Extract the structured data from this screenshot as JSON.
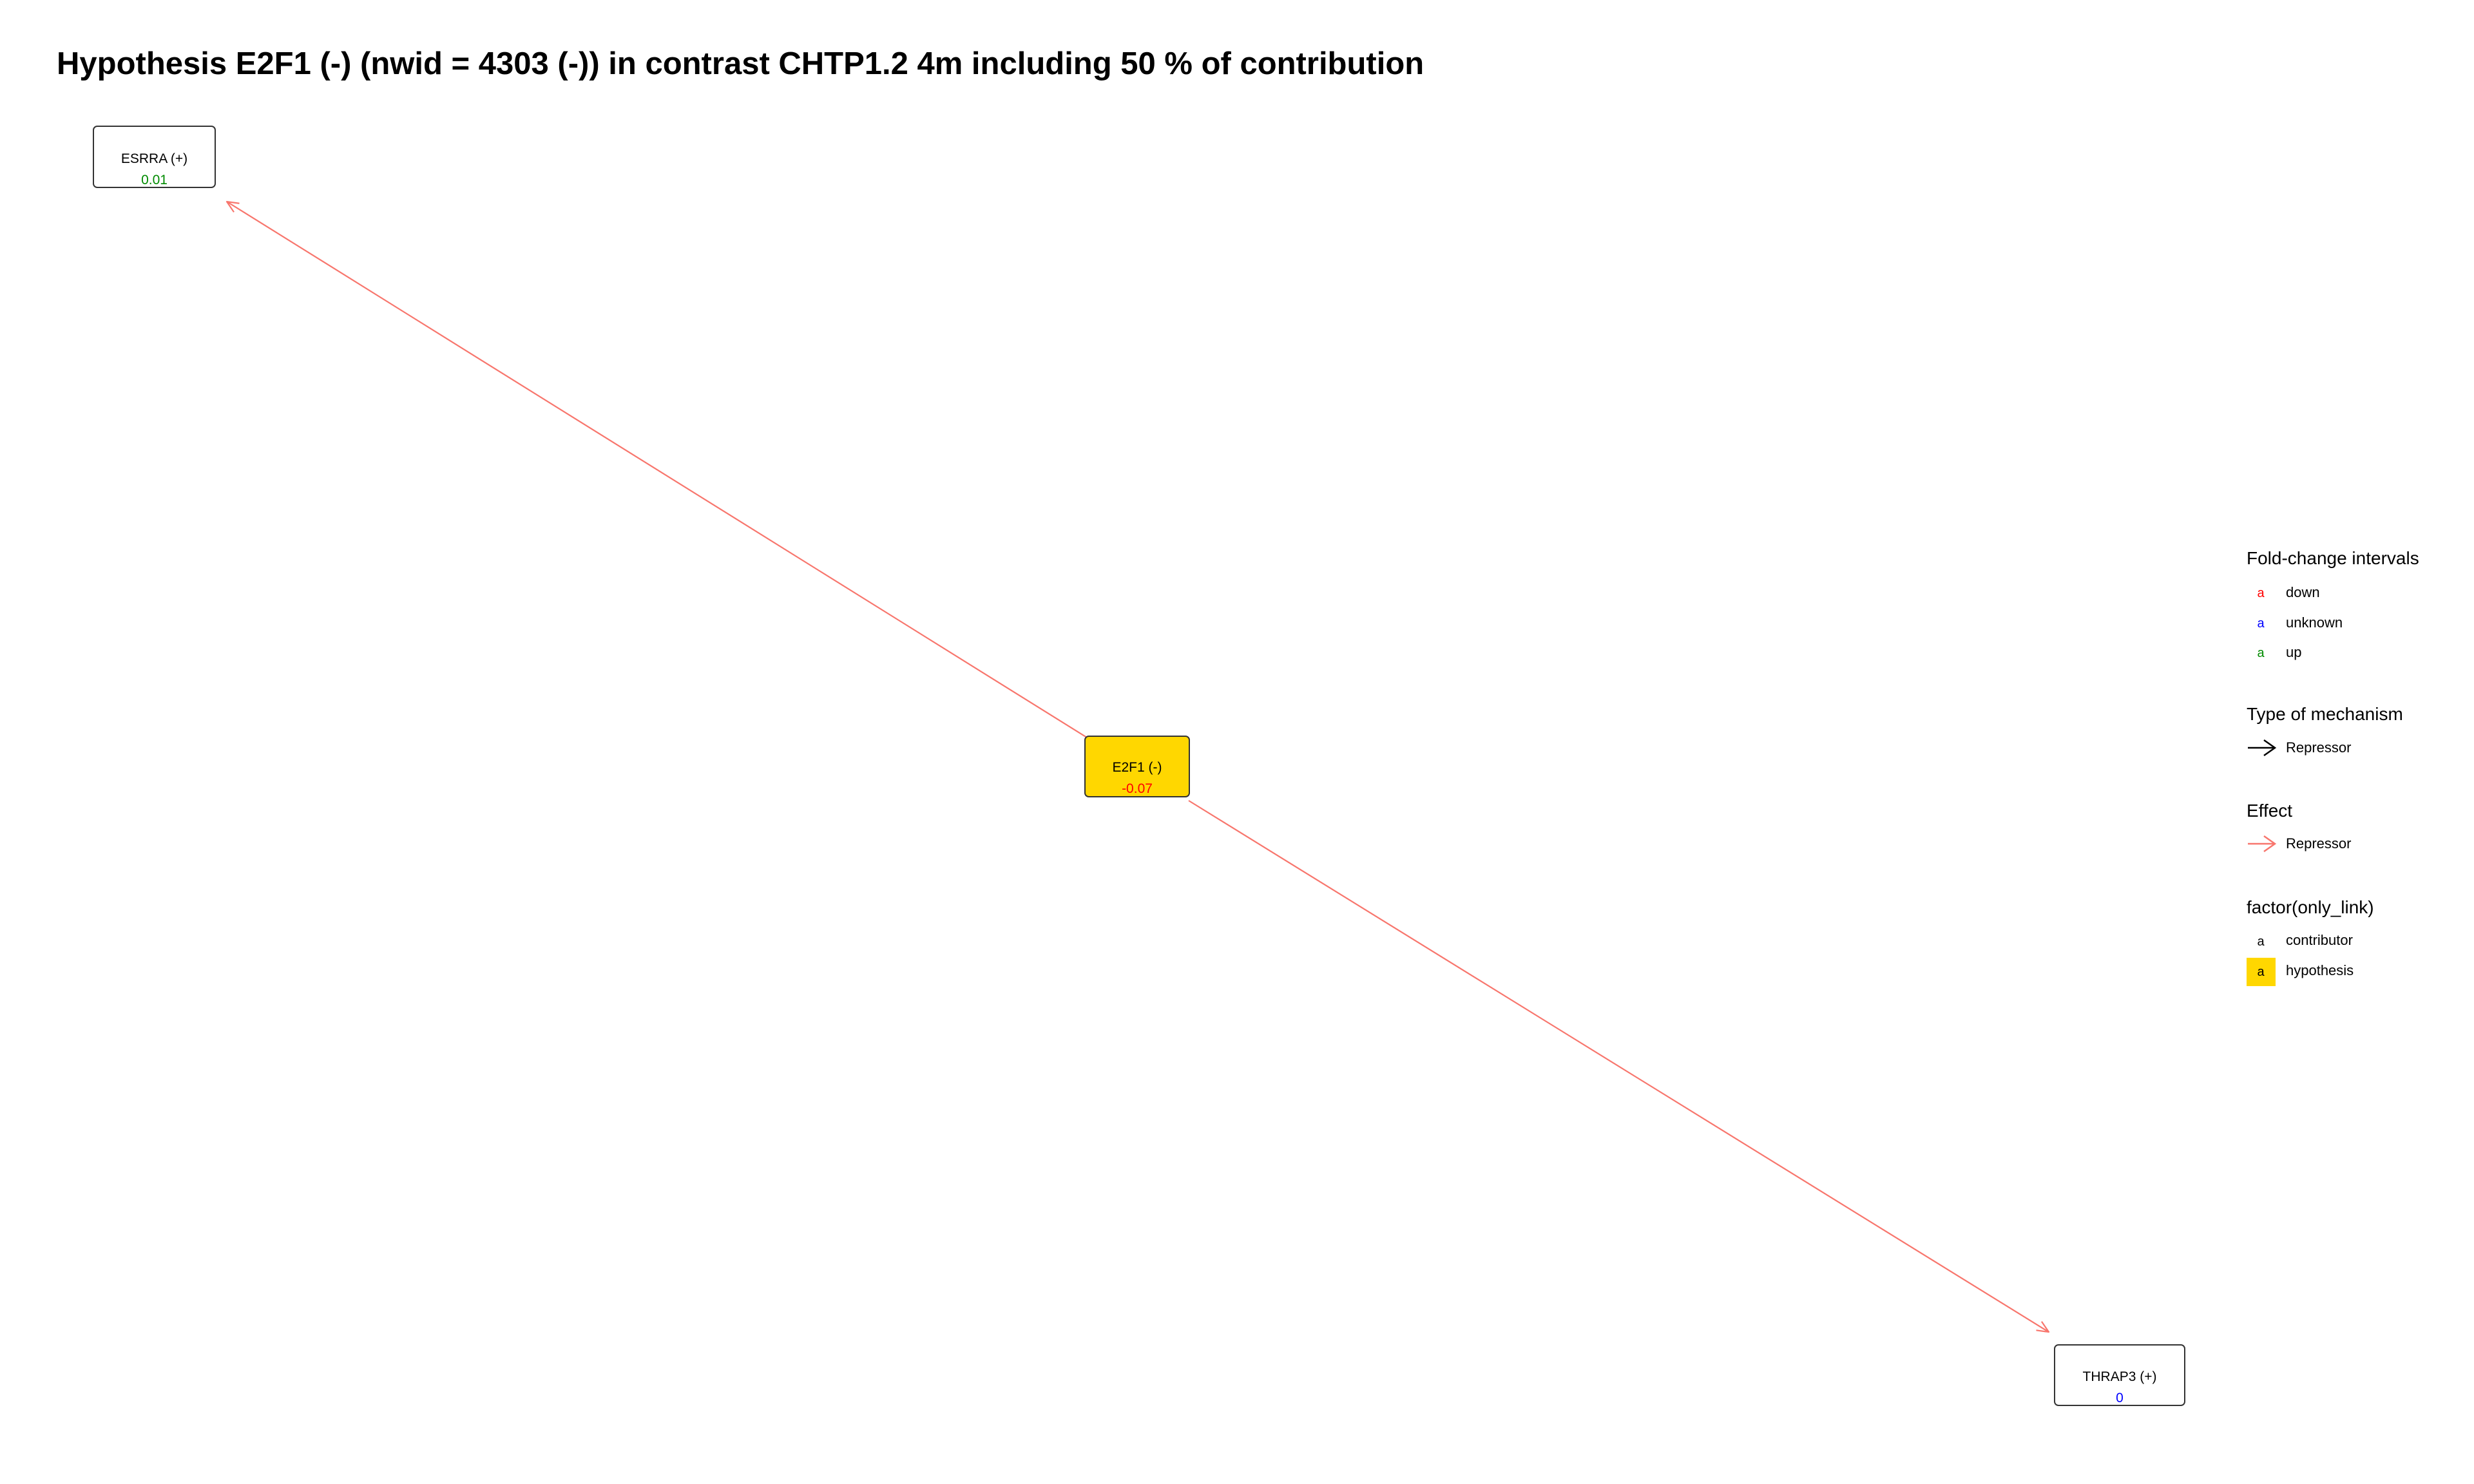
{
  "title": "Hypothesis  E2F1 (-) (nwid = 4303 (-))  in contrast CHTP1.2 4m including  50 % of contribution",
  "colors": {
    "down": "#ff0000",
    "unknown": "#0000ff",
    "up": "#008b00",
    "hypothesis_fill": "#ffd700",
    "contributor_fill": "#ffffff",
    "repressor_edge": "#f8766d",
    "mechanism_arrow": "#000000"
  },
  "nodes": [
    {
      "id": "esrra",
      "label": "ESRRA (+)",
      "value": "0.01",
      "direction": "up",
      "role": "contributor"
    },
    {
      "id": "e2f1",
      "label": "E2F1 (-)",
      "value": "-0.07",
      "direction": "down",
      "role": "hypothesis"
    },
    {
      "id": "thrap3",
      "label": "THRAP3 (+)",
      "value": "0",
      "direction": "unknown",
      "role": "contributor"
    }
  ],
  "edges": [
    {
      "from": "e2f1",
      "to": "esrra",
      "effect": "Repressor",
      "mechanism": "Repressor"
    },
    {
      "from": "e2f1",
      "to": "thrap3",
      "effect": "Repressor",
      "mechanism": "Repressor"
    }
  ],
  "legend": {
    "fold_change": {
      "title": "Fold-change intervals",
      "key_glyph": "a",
      "items": [
        {
          "label": "down",
          "color_key": "down"
        },
        {
          "label": "unknown",
          "color_key": "unknown"
        },
        {
          "label": "up",
          "color_key": "up"
        }
      ]
    },
    "mechanism": {
      "title": "Type of mechanism",
      "items": [
        {
          "label": "Repressor"
        }
      ]
    },
    "effect": {
      "title": "Effect",
      "items": [
        {
          "label": "Repressor"
        }
      ]
    },
    "only_link": {
      "title": "factor(only_link)",
      "key_glyph": "a",
      "items": [
        {
          "label": "contributor",
          "fill_key": "contributor_fill"
        },
        {
          "label": "hypothesis",
          "fill_key": "hypothesis_fill"
        }
      ]
    }
  }
}
